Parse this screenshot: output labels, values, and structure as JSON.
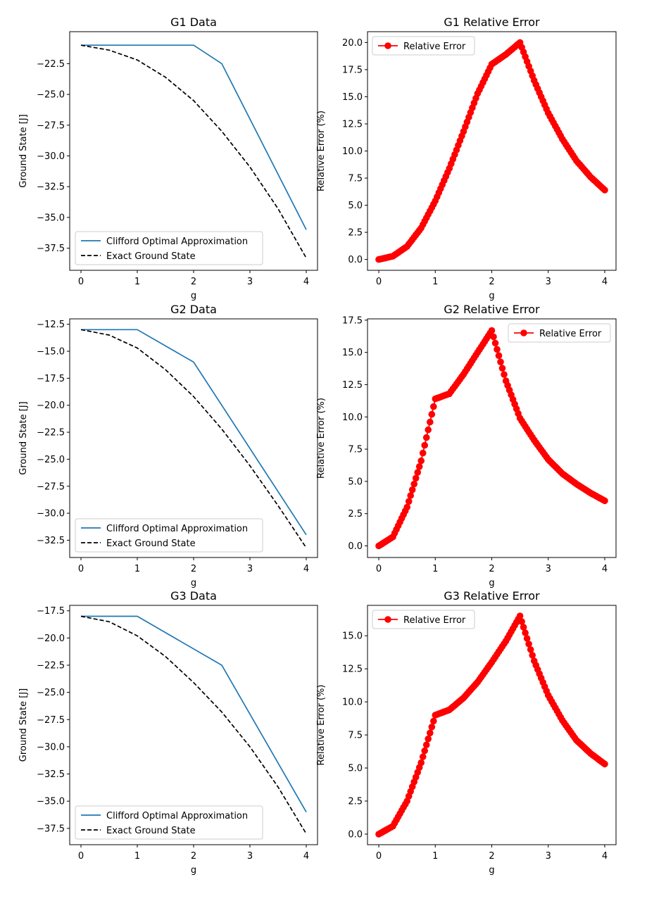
{
  "colors": {
    "approx": "#1f77b4",
    "exact": "#000000",
    "error": "#ff0000",
    "axis": "#000000",
    "legend_border": "#cccccc"
  },
  "chart_data": [
    {
      "id": "g1-data",
      "type": "line",
      "title": "G1 Data",
      "xlabel": "g",
      "ylabel": "Ground State [J]",
      "xlim": [
        -0.2,
        4.2
      ],
      "ylim": [
        -39.3,
        -19.9
      ],
      "xticks": [
        0,
        1,
        2,
        3,
        4
      ],
      "xtick_labels": [
        "0",
        "1",
        "2",
        "3",
        "4"
      ],
      "yticks": [
        -22.5,
        -25.0,
        -27.5,
        -30.0,
        -32.5,
        -35.0,
        -37.5
      ],
      "ytick_labels": [
        "−22.5",
        "−25.0",
        "−27.5",
        "−30.0",
        "−32.5",
        "−35.0",
        "−37.5"
      ],
      "legend_position": "lower-left",
      "series": [
        {
          "name": "Clifford Optimal Approximation",
          "style": "solid",
          "color": "#1f77b4",
          "x": [
            0,
            2,
            2.5,
            4
          ],
          "y": [
            -21,
            -21,
            -22.5,
            -36
          ]
        },
        {
          "name": "Exact Ground State",
          "style": "dashed",
          "color": "#000000",
          "x": [
            0,
            0.5,
            1,
            1.5,
            2,
            2.5,
            3,
            3.5,
            4
          ],
          "y": [
            -21.0,
            -21.4,
            -22.2,
            -23.6,
            -25.5,
            -28.0,
            -30.9,
            -34.3,
            -38.3
          ]
        }
      ]
    },
    {
      "id": "g1-error",
      "type": "line",
      "title": "G1 Relative Error",
      "xlabel": "g",
      "ylabel": "Relative Error (%)",
      "xlim": [
        -0.2,
        4.2
      ],
      "ylim": [
        -1.0,
        21.0
      ],
      "xticks": [
        0,
        1,
        2,
        3,
        4
      ],
      "xtick_labels": [
        "0",
        "1",
        "2",
        "3",
        "4"
      ],
      "yticks": [
        0.0,
        2.5,
        5.0,
        7.5,
        10.0,
        12.5,
        15.0,
        17.5,
        20.0
      ],
      "ytick_labels": [
        "0.0",
        "2.5",
        "5.0",
        "7.5",
        "10.0",
        "12.5",
        "15.0",
        "17.5",
        "20.0"
      ],
      "legend_position": "upper-left",
      "series": [
        {
          "name": "Relative Error",
          "style": "marker-line",
          "color": "#ff0000",
          "x": [
            0,
            0.25,
            0.5,
            0.75,
            1,
            1.25,
            1.5,
            1.75,
            2,
            2.25,
            2.5,
            2.75,
            3,
            3.25,
            3.5,
            3.75,
            4
          ],
          "y": [
            0,
            0.3,
            1.2,
            2.9,
            5.4,
            8.4,
            11.8,
            15.3,
            18.0,
            18.9,
            20.0,
            16.5,
            13.5,
            11.1,
            9.1,
            7.6,
            6.4
          ]
        }
      ]
    },
    {
      "id": "g2-data",
      "type": "line",
      "title": "G2 Data",
      "xlabel": "g",
      "ylabel": "Ground State [J]",
      "xlim": [
        -0.2,
        4.2
      ],
      "ylim": [
        -34.1,
        -12.0
      ],
      "xticks": [
        0,
        1,
        2,
        3,
        4
      ],
      "xtick_labels": [
        "0",
        "1",
        "2",
        "3",
        "4"
      ],
      "yticks": [
        -12.5,
        -15.0,
        -17.5,
        -20.0,
        -22.5,
        -25.0,
        -27.5,
        -30.0,
        -32.5
      ],
      "ytick_labels": [
        "−12.5",
        "−15.0",
        "−17.5",
        "−20.0",
        "−22.5",
        "−25.0",
        "−27.5",
        "−30.0",
        "−32.5"
      ],
      "legend_position": "lower-left",
      "series": [
        {
          "name": "Clifford Optimal Approximation",
          "style": "solid",
          "color": "#1f77b4",
          "x": [
            0,
            1,
            2,
            4
          ],
          "y": [
            -13,
            -13,
            -16,
            -32
          ]
        },
        {
          "name": "Exact Ground State",
          "style": "dashed",
          "color": "#000000",
          "x": [
            0,
            0.5,
            1,
            1.5,
            2,
            2.5,
            3,
            3.5,
            4
          ],
          "y": [
            -13.0,
            -13.5,
            -14.7,
            -16.7,
            -19.2,
            -22.2,
            -25.6,
            -29.3,
            -33.2
          ]
        }
      ]
    },
    {
      "id": "g2-error",
      "type": "line",
      "title": "G2 Relative Error",
      "xlabel": "g",
      "ylabel": "Relative Error (%)",
      "xlim": [
        -0.2,
        4.2
      ],
      "ylim": [
        -0.9,
        17.6
      ],
      "xticks": [
        0,
        1,
        2,
        3,
        4
      ],
      "xtick_labels": [
        "0",
        "1",
        "2",
        "3",
        "4"
      ],
      "yticks": [
        0.0,
        2.5,
        5.0,
        7.5,
        10.0,
        12.5,
        15.0,
        17.5
      ],
      "ytick_labels": [
        "0.0",
        "2.5",
        "5.0",
        "7.5",
        "10.0",
        "12.5",
        "15.0",
        "17.5"
      ],
      "legend_position": "upper-right",
      "series": [
        {
          "name": "Relative Error",
          "style": "marker-line",
          "color": "#ff0000",
          "x": [
            0,
            0.25,
            0.5,
            0.75,
            1,
            1.25,
            1.5,
            1.75,
            2,
            2.25,
            2.5,
            2.75,
            3,
            3.25,
            3.5,
            3.75,
            4
          ],
          "y": [
            0,
            0.7,
            3.0,
            6.6,
            11.4,
            11.8,
            13.3,
            15.0,
            16.7,
            12.8,
            9.9,
            8.2,
            6.7,
            5.6,
            4.8,
            4.1,
            3.5
          ]
        }
      ]
    },
    {
      "id": "g3-data",
      "type": "line",
      "title": "G3 Data",
      "xlabel": "g",
      "ylabel": "Ground State [J]",
      "xlim": [
        -0.2,
        4.2
      ],
      "ylim": [
        -39.0,
        -17.0
      ],
      "xticks": [
        0,
        1,
        2,
        3,
        4
      ],
      "xtick_labels": [
        "0",
        "1",
        "2",
        "3",
        "4"
      ],
      "yticks": [
        -17.5,
        -20.0,
        -22.5,
        -25.0,
        -27.5,
        -30.0,
        -32.5,
        -35.0,
        -37.5
      ],
      "ytick_labels": [
        "−17.5",
        "−20.0",
        "−22.5",
        "−25.0",
        "−27.5",
        "−30.0",
        "−32.5",
        "−35.0",
        "−37.5"
      ],
      "legend_position": "lower-left",
      "series": [
        {
          "name": "Clifford Optimal Approximation",
          "style": "solid",
          "color": "#1f77b4",
          "x": [
            0,
            1,
            2.5,
            4
          ],
          "y": [
            -18,
            -18,
            -22.5,
            -36
          ]
        },
        {
          "name": "Exact Ground State",
          "style": "dashed",
          "color": "#000000",
          "x": [
            0,
            0.5,
            1,
            1.5,
            2,
            2.5,
            3,
            3.5,
            4
          ],
          "y": [
            -18.0,
            -18.5,
            -19.8,
            -21.7,
            -24.1,
            -26.8,
            -30.0,
            -33.7,
            -38.0
          ]
        }
      ]
    },
    {
      "id": "g3-error",
      "type": "line",
      "title": "G3 Relative Error",
      "xlabel": "g",
      "ylabel": "Relative Error (%)",
      "xlim": [
        -0.2,
        4.2
      ],
      "ylim": [
        -0.8,
        17.3
      ],
      "xticks": [
        0,
        1,
        2,
        3,
        4
      ],
      "xtick_labels": [
        "0",
        "1",
        "2",
        "3",
        "4"
      ],
      "yticks": [
        0.0,
        2.5,
        5.0,
        7.5,
        10.0,
        12.5,
        15.0
      ],
      "ytick_labels": [
        "0.0",
        "2.5",
        "5.0",
        "7.5",
        "10.0",
        "12.5",
        "15.0"
      ],
      "legend_position": "upper-left",
      "series": [
        {
          "name": "Relative Error",
          "style": "marker-line",
          "color": "#ff0000",
          "x": [
            0,
            0.25,
            0.5,
            0.75,
            1,
            1.25,
            1.5,
            1.75,
            2,
            2.25,
            2.5,
            2.75,
            3,
            3.25,
            3.5,
            3.75,
            4
          ],
          "y": [
            0,
            0.6,
            2.5,
            5.4,
            9.0,
            9.4,
            10.3,
            11.5,
            13.0,
            14.6,
            16.5,
            13.1,
            10.5,
            8.6,
            7.1,
            6.1,
            5.3
          ]
        }
      ]
    }
  ]
}
